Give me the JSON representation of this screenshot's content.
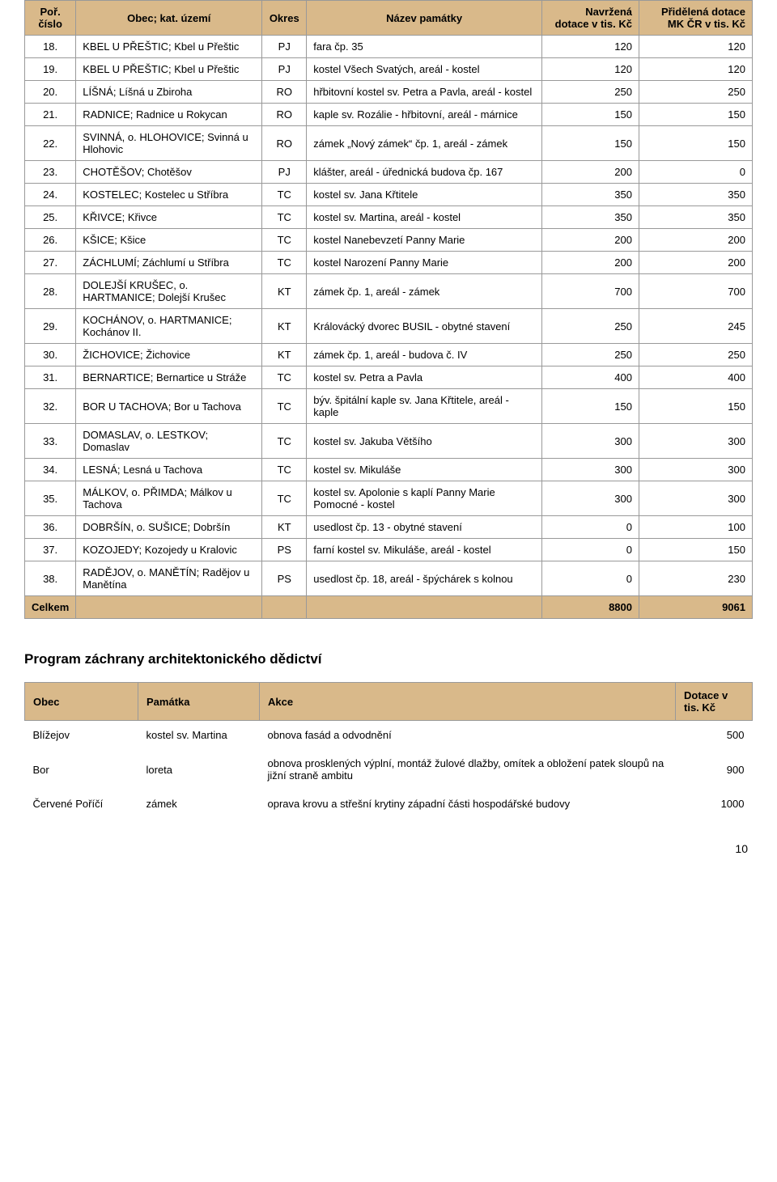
{
  "table1": {
    "headers": {
      "por": "Poř. číslo",
      "obec": "Obec; kat. území",
      "okres": "Okres",
      "nazev": "Název památky",
      "navr": "Navržená dotace v tis. Kč",
      "prid": "Přidělená dotace MK ČR v tis. Kč"
    },
    "rows": [
      {
        "por": "18.",
        "obec": "KBEL U PŘEŠTIC; Kbel u Přeštic",
        "okres": "PJ",
        "nazev": "fara čp. 35",
        "navr": "120",
        "prid": "120"
      },
      {
        "por": "19.",
        "obec": "KBEL U PŘEŠTIC; Kbel u Přeštic",
        "okres": "PJ",
        "nazev": "kostel Všech Svatých, areál - kostel",
        "navr": "120",
        "prid": "120"
      },
      {
        "por": "20.",
        "obec": "LÍŠNÁ; Líšná u Zbiroha",
        "okres": "RO",
        "nazev": "hřbitovní kostel sv. Petra a Pavla, areál - kostel",
        "navr": "250",
        "prid": "250"
      },
      {
        "por": "21.",
        "obec": "RADNICE; Radnice u Rokycan",
        "okres": "RO",
        "nazev": "kaple sv. Rozálie - hřbitovní, areál - márnice",
        "navr": "150",
        "prid": "150"
      },
      {
        "por": "22.",
        "obec": "SVINNÁ, o. HLOHOVICE; Svinná u Hlohovic",
        "okres": "RO",
        "nazev": "zámek „Nový zámek“ čp. 1, areál - zámek",
        "navr": "150",
        "prid": "150"
      },
      {
        "por": "23.",
        "obec": "CHOTĚŠOV; Chotěšov",
        "okres": "PJ",
        "nazev": "klášter, areál - úřednická budova čp. 167",
        "navr": "200",
        "prid": "0"
      },
      {
        "por": "24.",
        "obec": "KOSTELEC;  Kostelec u Stříbra",
        "okres": "TC",
        "nazev": "kostel sv. Jana Křtitele",
        "navr": "350",
        "prid": "350"
      },
      {
        "por": "25.",
        "obec": "KŘIVCE; Křivce",
        "okres": "TC",
        "nazev": "kostel sv. Martina, areál - kostel",
        "navr": "350",
        "prid": "350"
      },
      {
        "por": "26.",
        "obec": "KŠICE; Kšice",
        "okres": "TC",
        "nazev": "kostel Nanebevzetí Panny Marie",
        "navr": "200",
        "prid": "200"
      },
      {
        "por": "27.",
        "obec": "ZÁCHLUMÍ; Záchlumí u Stříbra",
        "okres": "TC",
        "nazev": "kostel Narození Panny Marie",
        "navr": "200",
        "prid": "200"
      },
      {
        "por": "28.",
        "obec": "DOLEJŠÍ KRUŠEC, o. HARTMANICE; Dolejší Krušec",
        "okres": "KT",
        "nazev": "zámek čp. 1, areál - zámek",
        "navr": "700",
        "prid": "700"
      },
      {
        "por": "29.",
        "obec": "KOCHÁNOV, o. HARTMANICE; Kochánov II.",
        "okres": "KT",
        "nazev": "Královácký dvorec BUSIL - obytné stavení",
        "navr": "250",
        "prid": "245"
      },
      {
        "por": "30.",
        "obec": "ŽICHOVICE; Žichovice",
        "okres": "KT",
        "nazev": "zámek čp. 1, areál - budova č. IV",
        "navr": "250",
        "prid": "250"
      },
      {
        "por": "31.",
        "obec": "BERNARTICE; Bernartice u Stráže",
        "okres": "TC",
        "nazev": "kostel sv. Petra a Pavla",
        "navr": "400",
        "prid": "400"
      },
      {
        "por": "32.",
        "obec": "BOR U TACHOVA; Bor u Tachova",
        "okres": "TC",
        "nazev": "býv. špitální kaple sv. Jana Křtitele, areál - kaple",
        "navr": "150",
        "prid": "150"
      },
      {
        "por": "33.",
        "obec": "DOMASLAV, o. LESTKOV; Domaslav",
        "okres": "TC",
        "nazev": "kostel sv. Jakuba Většího",
        "navr": "300",
        "prid": "300"
      },
      {
        "por": "34.",
        "obec": "LESNÁ; Lesná u Tachova",
        "okres": "TC",
        "nazev": "kostel sv. Mikuláše",
        "navr": "300",
        "prid": "300"
      },
      {
        "por": "35.",
        "obec": "MÁLKOV, o. PŘIMDA; Málkov u Tachova",
        "okres": "TC",
        "nazev": "kostel sv. Apolonie s kaplí Panny Marie Pomocné - kostel",
        "navr": "300",
        "prid": "300"
      },
      {
        "por": "36.",
        "obec": "DOBRŠÍN, o. SUŠICE; Dobršín",
        "okres": "KT",
        "nazev": "usedlost čp. 13 - obytné stavení",
        "navr": "0",
        "prid": "100"
      },
      {
        "por": "37.",
        "obec": "KOZOJEDY; Kozojedy u Kralovic",
        "okres": "PS",
        "nazev": "farní kostel sv. Mikuláše, areál - kostel",
        "navr": "0",
        "prid": "150"
      },
      {
        "por": "38.",
        "obec": "RADĚJOV, o. MANĚTÍN; Radějov u Manětína",
        "okres": "PS",
        "nazev": "usedlost čp. 18, areál - špýchárek s kolnou",
        "navr": "0",
        "prid": "230"
      }
    ],
    "total": {
      "label": "Celkem",
      "navr": "8800",
      "prid": "9061"
    }
  },
  "section_title": "Program záchrany architektonického dědictví",
  "table2": {
    "headers": {
      "obec": "Obec",
      "pam": "Památka",
      "akce": "Akce",
      "dot": "Dotace v tis. Kč"
    },
    "rows": [
      {
        "obec": "Blížejov",
        "pam": "kostel sv. Martina",
        "akce": "obnova fasád a odvodnění",
        "dot": "500"
      },
      {
        "obec": "Bor",
        "pam": "loreta",
        "akce": "obnova prosklených výplní, montáž žulové dlažby, omítek a obložení patek sloupů na jižní straně ambitu",
        "dot": "900"
      },
      {
        "obec": "Červené Poříčí",
        "pam": "zámek",
        "akce": "oprava krovu a střešní krytiny západní části hospodářské budovy",
        "dot": "1000"
      }
    ]
  },
  "page_number": "10"
}
